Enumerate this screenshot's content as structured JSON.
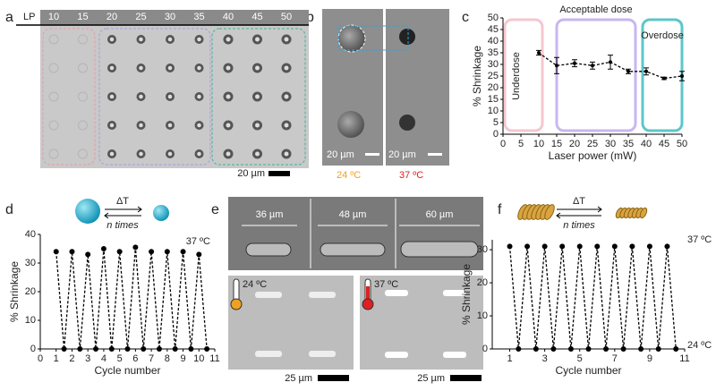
{
  "panel_labels": [
    "a",
    "b",
    "c",
    "d",
    "e",
    "f"
  ],
  "panel_a": {
    "lp_label": "LP",
    "lp": [
      10,
      15,
      20,
      25,
      30,
      35,
      40,
      45,
      50
    ],
    "scale_label": "20 µm"
  },
  "panel_b": {
    "scale_labels": [
      "20 µm",
      "20 µm"
    ],
    "temperatures": [
      "24 ºC",
      "37 ºC"
    ]
  },
  "panel_d_icon": {
    "delta": "ΔT",
    "times": "n times"
  },
  "panel_e": {
    "lengths": [
      "36 µm",
      "48 µm",
      "60 µm"
    ],
    "temperatures": [
      "24 ºC",
      "37 ºC"
    ],
    "scale_labels": [
      "25 µm",
      "25 µm"
    ]
  },
  "panel_f_icon": {
    "delta": "ΔT",
    "times": "n times"
  },
  "chart_data": [
    {
      "type": "line",
      "xlabel": "Laser power (mW)",
      "ylabel": "% Shrinkage",
      "xlim": [
        0,
        50
      ],
      "xticks": [
        0,
        5,
        10,
        15,
        20,
        25,
        30,
        35,
        40,
        45,
        50
      ],
      "ylim": [
        0,
        50
      ],
      "yticks": [
        0,
        5,
        10,
        15,
        20,
        25,
        30,
        35,
        40,
        45,
        50
      ],
      "x": [
        10,
        15,
        20,
        25,
        30,
        35,
        40,
        45,
        50
      ],
      "series": [
        {
          "color": "#000000",
          "values": [
            35,
            29.5,
            30.5,
            29.5,
            31,
            27,
            27,
            24,
            25
          ],
          "errors": [
            1,
            3.5,
            1.5,
            1.5,
            3,
            1,
            1.5,
            0.5,
            2
          ]
        }
      ],
      "regions": [
        {
          "name": "Underdose",
          "color": "#f4c7cf",
          "range": [
            0.5,
            11
          ]
        },
        {
          "name": "Acceptable dose",
          "color": "#c9b6f0",
          "range": [
            15,
            37
          ]
        },
        {
          "name": "Overdose",
          "color": "#5cc6c9",
          "range": [
            39,
            50
          ]
        }
      ]
    },
    {
      "type": "line",
      "xlabel": "Cycle number",
      "ylabel": "% Shrinkage",
      "annotations": [
        "37 ºC"
      ],
      "xlim": [
        0,
        11
      ],
      "xticks": [
        0,
        1,
        2,
        3,
        4,
        5,
        6,
        7,
        8,
        9,
        10,
        11
      ],
      "ylim": [
        0,
        40
      ],
      "yticks": [
        0,
        10,
        20,
        30,
        40
      ],
      "x": [
        1,
        1.5,
        2,
        2.5,
        3,
        3.5,
        4,
        4.5,
        5,
        5.5,
        6,
        6.5,
        7,
        7.5,
        8,
        8.5,
        9,
        9.5,
        10,
        10.5
      ],
      "series": [
        {
          "color": "#000000",
          "values": [
            34,
            0,
            34,
            0,
            33,
            0,
            35,
            0,
            34,
            0,
            35.5,
            0,
            34,
            0,
            34,
            0,
            34,
            0,
            33,
            0
          ]
        }
      ]
    },
    {
      "type": "line",
      "xlabel": "Cycle number",
      "ylabel": "% Shrinkage",
      "annotations": [
        "37 ºC",
        "24 ºC"
      ],
      "xlim": [
        0,
        11
      ],
      "xticks": [
        1,
        3,
        5,
        7,
        9,
        11
      ],
      "ylim": [
        0,
        33
      ],
      "yticks": [
        0,
        10,
        20,
        30
      ],
      "x": [
        1,
        1.5,
        2,
        2.5,
        3,
        3.5,
        4,
        4.5,
        5,
        5.5,
        6,
        6.5,
        7,
        7.5,
        8,
        8.5,
        9,
        9.5,
        10,
        10.5
      ],
      "series": [
        {
          "color": "#000000",
          "values": [
            31,
            0,
            31,
            0,
            31,
            0,
            31,
            0,
            31,
            0,
            31,
            0,
            31,
            0,
            31,
            0,
            31,
            0,
            31,
            0
          ]
        }
      ]
    }
  ]
}
